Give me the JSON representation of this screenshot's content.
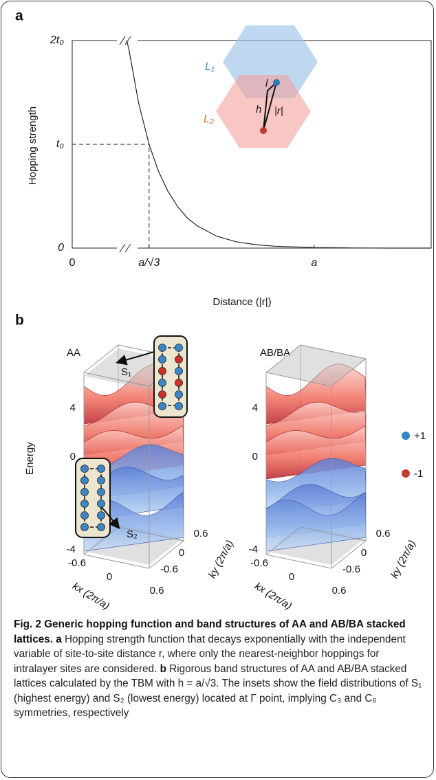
{
  "chart_data": {
    "type": "line",
    "panel_label": "a",
    "x_label": "Distance (|r|)",
    "y_label": "Hopping strength",
    "x": [
      0.525,
      0.55,
      0.577,
      0.6,
      0.625,
      0.65,
      0.675,
      0.7,
      0.75,
      0.8,
      0.85,
      0.9,
      1.0,
      1.1,
      1.2,
      1.3
    ],
    "values": [
      1.92,
      1.4,
      1.0,
      0.75,
      0.55,
      0.4,
      0.29,
      0.215,
      0.115,
      0.061,
      0.033,
      0.018,
      0.005,
      0.001,
      0,
      0
    ],
    "color": "#222222",
    "xlim": [
      0.38,
      1.3
    ],
    "ylim": [
      0,
      2
    ],
    "xticks": [
      {
        "value": 0,
        "label": "0"
      },
      {
        "value": 0.577,
        "label": "a/√3"
      },
      {
        "value": 1,
        "label": "a"
      }
    ],
    "yticks": [
      0,
      {
        "value": 1,
        "label": "t₀"
      },
      {
        "value": 2,
        "label": "2t₀"
      }
    ],
    "axis_break": true,
    "inset": {
      "layer_1": "L₁",
      "layer_2": "L₂",
      "l": "l",
      "h": "h",
      "r": "|r|"
    }
  },
  "panel_b": {
    "label": "b",
    "energy_label": "Energy",
    "left": {
      "title": "AA",
      "s1": "S₁",
      "s2": "S₂",
      "e_ticks": [
        "4",
        "0",
        "-4"
      ],
      "kx_ticks": [
        "-0.6",
        "0",
        "0.6"
      ],
      "ky_ticks": [
        "0.6",
        "0",
        "-0.6"
      ],
      "kx_label": "kx (2π/a)",
      "ky_label": "ky (2π/a)"
    },
    "right": {
      "title": "AB/BA",
      "e_ticks": [
        "4",
        "0",
        "-4"
      ],
      "kx_ticks": [
        "-0.6",
        "0",
        "0.6"
      ],
      "ky_ticks": [
        "0.6",
        "0",
        "-0.6"
      ],
      "kx_label": "kx (2π/a)",
      "ky_label": "ky (2π/a)"
    },
    "legend": [
      "+1",
      "-1"
    ]
  },
  "caption": {
    "title": "Fig. 2 Generic hopping function and band structures of AA and AB/BA stacked lattices.",
    "a_label": "a",
    "a_text": "Hopping strength function that decays exponentially with the independent variable of site-to-site distance r, where only the nearest-neighbor hoppings for intralayer sites are considered.",
    "b_label": "b",
    "b_text": "Rigorous band structures of AA and AB/BA stacked lattices calculated by the TBM with h = a/√3. The insets show the field distributions of S₁ (highest energy) and S₂ (lowest energy) located at Γ point, implying C₃ and C₆ symmetries, respectively"
  }
}
